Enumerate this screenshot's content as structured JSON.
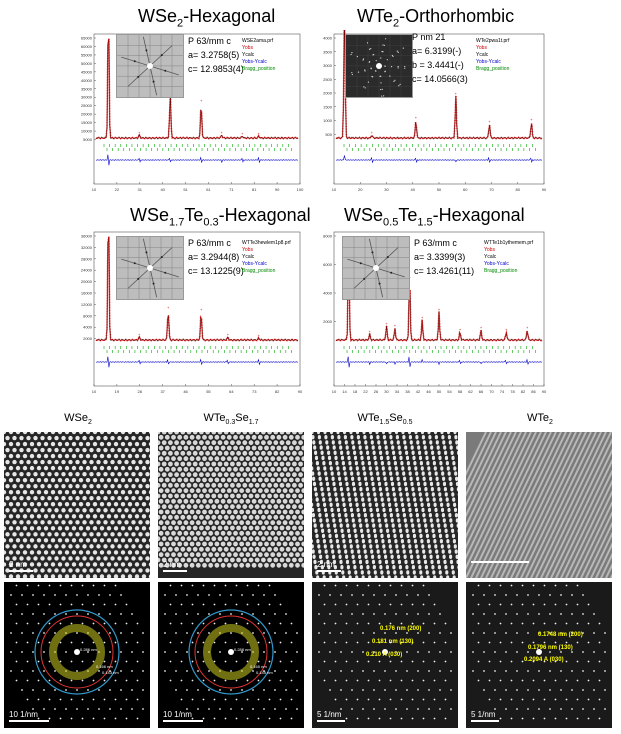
{
  "xrd": [
    {
      "title_main": "WSe",
      "title_sub1": "2",
      "title_mid": "",
      "title_sub2": "",
      "title_end": "-Hexagonal",
      "space_group": "P 63/mm c",
      "a": "a= 3.2758(5)",
      "b": "",
      "c": "c= 12.9853(4)",
      "file": "WSE2ama.prf",
      "yticks": [
        "65000",
        "60000",
        "55000",
        "50000",
        "45000",
        "40000",
        "35000",
        "30000",
        "25000",
        "20000",
        "15000",
        "10000",
        "5000"
      ],
      "xticks": [
        "10",
        "22",
        "31",
        "40",
        "51",
        "61",
        "71",
        "81",
        "90",
        "100"
      ]
    },
    {
      "title_main": "WTe",
      "title_sub1": "2",
      "title_mid": "",
      "title_sub2": "",
      "title_end": "-Orthorhombic",
      "space_group": "P nm 21",
      "a": "a= 6.3199(-)",
      "b": "b = 3.4441(-)",
      "c": "c= 14.0566(3)",
      "file": "WTe2pwa1t.prf",
      "yticks": [
        "4000",
        "3500",
        "3000",
        "2500",
        "2000",
        "1500",
        "1000",
        "500"
      ],
      "xticks": [
        "10",
        "20",
        "30",
        "40",
        "50",
        "60",
        "70",
        "80",
        "90"
      ]
    },
    {
      "title_main": "WSe",
      "title_sub1": "1.7",
      "title_mid": "Te",
      "title_sub2": "0.3",
      "title_end": "-Hexagonal",
      "space_group": "P 63/mm c",
      "a": "a= 3.2944(8)",
      "b": "",
      "c": "c= 13.1225(9)",
      "file": "WTTe3hewlem1p8.prf",
      "yticks": [
        "36000",
        "32000",
        "28000",
        "24000",
        "20000",
        "16000",
        "12000",
        "8000",
        "4000",
        "2000"
      ],
      "xticks": [
        "10",
        "19",
        "28",
        "37",
        "46",
        "55",
        "64",
        "73",
        "82",
        "90"
      ]
    },
    {
      "title_main": "WSe",
      "title_sub1": "0.5",
      "title_mid": "Te",
      "title_sub2": "1.5",
      "title_end": "-Hexagonal",
      "space_group": "P 63/mm c",
      "a": "a= 3.3399(3)",
      "b": "",
      "c": "c= 13.4261(11)",
      "file": "WTTe1b1ythemem.prf",
      "yticks": [
        "8000",
        "6000",
        "4000",
        "2000"
      ],
      "xticks": [
        "10",
        "14",
        "18",
        "22",
        "26",
        "30",
        "34",
        "38",
        "42",
        "46",
        "50",
        "54",
        "58",
        "62",
        "66",
        "70",
        "74",
        "78",
        "82",
        "86",
        "90"
      ]
    }
  ],
  "legend": {
    "obs": "Yobs",
    "calc": "Ycalc",
    "diff": "Yobs-Ycalc",
    "bragg": "Bragg_position"
  },
  "tem": [
    {
      "main": "WSe",
      "sub1": "2",
      "mid": "",
      "sub2": "",
      "scale_img": "2 nm",
      "scale_fft": "10 1/nm",
      "ann": [],
      "annw": [
        "0.286 nm",
        "0.166 nm",
        "0.143 nm"
      ]
    },
    {
      "main": "WTe",
      "sub1": "0.3",
      "mid": "Se",
      "sub2": "1.7",
      "scale_img": "2 nm",
      "scale_fft": "10 1/nm",
      "ann": [],
      "annw": [
        "0.288 nm",
        "0.165 nm",
        "0.145 nm"
      ]
    },
    {
      "main": "WTe",
      "sub1": "1.5",
      "mid": "Se",
      "sub2": "0.5",
      "scale_img": "2 nm",
      "scale_fft": "5 1/nm",
      "ann": [
        "0.176 nm (200)",
        "0.181 nm (130)",
        "0.210 A (030)"
      ],
      "annw": []
    },
    {
      "main": "WTe",
      "sub1": "2",
      "mid": "",
      "sub2": "",
      "scale_img": "",
      "scale_fft": "5 1/nm",
      "ann": [
        "0.1748 nm (200)",
        "0.1796 nm (130)",
        "0.2094 A (030)"
      ],
      "annw": []
    }
  ],
  "colors": {
    "obs": "#cc0000",
    "calc": "#000000",
    "diff": "#0000cc",
    "bragg": "#00aa00",
    "ann": "#ffff00"
  }
}
